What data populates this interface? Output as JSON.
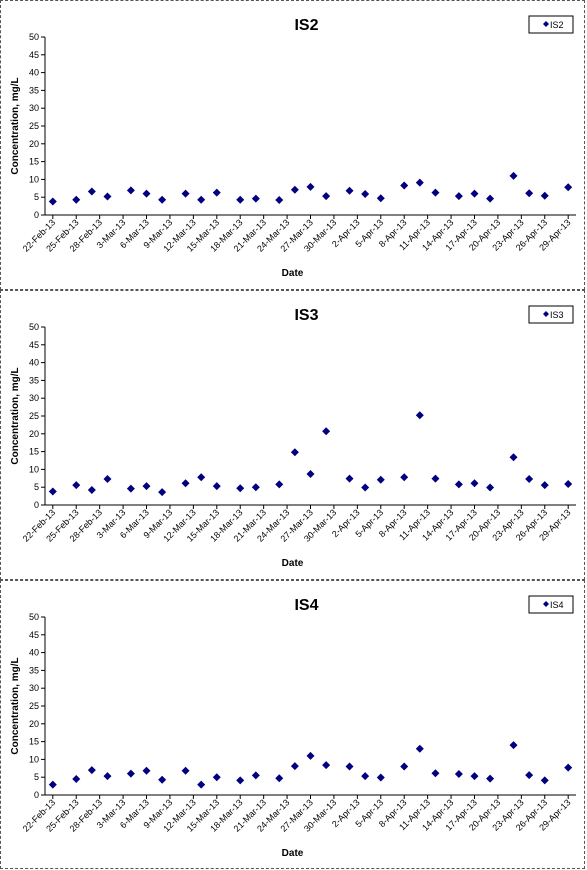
{
  "colors": {
    "marker": "#000080",
    "axis": "#000000",
    "panel_border": "#555555"
  },
  "chart_data": [
    {
      "type": "scatter",
      "title": "IS2",
      "xlabel": "Date",
      "ylabel": "Concentration, mg/L",
      "ylim": [
        0,
        50
      ],
      "yticks": [
        0,
        5,
        10,
        15,
        20,
        25,
        30,
        35,
        40,
        45,
        50
      ],
      "xlim": [
        "2013-02-21",
        "2013-04-30"
      ],
      "xtick_labels": [
        "22-Feb-13",
        "25-Feb-13",
        "28-Feb-13",
        "3-Mar-13",
        "6-Mar-13",
        "9-Mar-13",
        "12-Mar-13",
        "15-Mar-13",
        "18-Mar-13",
        "21-Mar-13",
        "24-Mar-13",
        "27-Mar-13",
        "30-Mar-13",
        "2-Apr-13",
        "5-Apr-13",
        "8-Apr-13",
        "11-Apr-13",
        "14-Apr-13",
        "17-Apr-13",
        "20-Apr-13",
        "23-Apr-13",
        "26-Apr-13",
        "29-Apr-13"
      ],
      "legend": {
        "position": "top-right",
        "entries": [
          "IS2"
        ]
      },
      "grid": false,
      "series": [
        {
          "name": "IS2",
          "points": [
            {
              "x": "2013-02-22",
              "y": 3.8
            },
            {
              "x": "2013-02-25",
              "y": 4.3
            },
            {
              "x": "2013-02-27",
              "y": 6.6
            },
            {
              "x": "2013-03-01",
              "y": 5.2
            },
            {
              "x": "2013-03-04",
              "y": 6.9
            },
            {
              "x": "2013-03-06",
              "y": 6.0
            },
            {
              "x": "2013-03-08",
              "y": 4.3
            },
            {
              "x": "2013-03-11",
              "y": 6.0
            },
            {
              "x": "2013-03-13",
              "y": 4.3
            },
            {
              "x": "2013-03-15",
              "y": 6.3
            },
            {
              "x": "2013-03-18",
              "y": 4.3
            },
            {
              "x": "2013-03-20",
              "y": 4.6
            },
            {
              "x": "2013-03-23",
              "y": 4.2
            },
            {
              "x": "2013-03-25",
              "y": 7.1
            },
            {
              "x": "2013-03-27",
              "y": 7.9
            },
            {
              "x": "2013-03-29",
              "y": 5.3
            },
            {
              "x": "2013-04-01",
              "y": 6.8
            },
            {
              "x": "2013-04-03",
              "y": 5.9
            },
            {
              "x": "2013-04-05",
              "y": 4.7
            },
            {
              "x": "2013-04-08",
              "y": 8.3
            },
            {
              "x": "2013-04-10",
              "y": 9.1
            },
            {
              "x": "2013-04-12",
              "y": 6.3
            },
            {
              "x": "2013-04-15",
              "y": 5.3
            },
            {
              "x": "2013-04-17",
              "y": 6.0
            },
            {
              "x": "2013-04-19",
              "y": 4.6
            },
            {
              "x": "2013-04-22",
              "y": 11.0
            },
            {
              "x": "2013-04-24",
              "y": 6.1
            },
            {
              "x": "2013-04-26",
              "y": 5.4
            },
            {
              "x": "2013-04-29",
              "y": 7.8
            }
          ]
        }
      ]
    },
    {
      "type": "scatter",
      "title": "IS3",
      "xlabel": "Date",
      "ylabel": "Concentration, mg/L",
      "ylim": [
        0,
        50
      ],
      "yticks": [
        0,
        5,
        10,
        15,
        20,
        25,
        30,
        35,
        40,
        45,
        50
      ],
      "xlim": [
        "2013-02-21",
        "2013-04-30"
      ],
      "xtick_labels": [
        "22-Feb-13",
        "25-Feb-13",
        "28-Feb-13",
        "3-Mar-13",
        "6-Mar-13",
        "9-Mar-13",
        "12-Mar-13",
        "15-Mar-13",
        "18-Mar-13",
        "21-Mar-13",
        "24-Mar-13",
        "27-Mar-13",
        "30-Mar-13",
        "2-Apr-13",
        "5-Apr-13",
        "8-Apr-13",
        "11-Apr-13",
        "14-Apr-13",
        "17-Apr-13",
        "20-Apr-13",
        "23-Apr-13",
        "26-Apr-13",
        "29-Apr-13"
      ],
      "legend": {
        "position": "top-right",
        "entries": [
          "IS3"
        ]
      },
      "grid": false,
      "series": [
        {
          "name": "IS3",
          "points": [
            {
              "x": "2013-02-22",
              "y": 3.8
            },
            {
              "x": "2013-02-25",
              "y": 5.6
            },
            {
              "x": "2013-02-27",
              "y": 4.2
            },
            {
              "x": "2013-03-01",
              "y": 7.3
            },
            {
              "x": "2013-03-04",
              "y": 4.6
            },
            {
              "x": "2013-03-06",
              "y": 5.3
            },
            {
              "x": "2013-03-08",
              "y": 3.6
            },
            {
              "x": "2013-03-11",
              "y": 6.1
            },
            {
              "x": "2013-03-13",
              "y": 7.8
            },
            {
              "x": "2013-03-15",
              "y": 5.3
            },
            {
              "x": "2013-03-18",
              "y": 4.7
            },
            {
              "x": "2013-03-20",
              "y": 5.0
            },
            {
              "x": "2013-03-23",
              "y": 5.8
            },
            {
              "x": "2013-03-25",
              "y": 14.8
            },
            {
              "x": "2013-03-27",
              "y": 8.7
            },
            {
              "x": "2013-03-29",
              "y": 20.7
            },
            {
              "x": "2013-04-01",
              "y": 7.4
            },
            {
              "x": "2013-04-03",
              "y": 4.9
            },
            {
              "x": "2013-04-05",
              "y": 7.1
            },
            {
              "x": "2013-04-08",
              "y": 7.8
            },
            {
              "x": "2013-04-10",
              "y": 25.2
            },
            {
              "x": "2013-04-12",
              "y": 7.4
            },
            {
              "x": "2013-04-15",
              "y": 5.8
            },
            {
              "x": "2013-04-17",
              "y": 6.1
            },
            {
              "x": "2013-04-19",
              "y": 4.9
            },
            {
              "x": "2013-04-22",
              "y": 13.4
            },
            {
              "x": "2013-04-24",
              "y": 7.3
            },
            {
              "x": "2013-04-26",
              "y": 5.6
            },
            {
              "x": "2013-04-29",
              "y": 5.9
            }
          ]
        }
      ]
    },
    {
      "type": "scatter",
      "title": "IS4",
      "xlabel": "Date",
      "ylabel": "Concentration, mg/L",
      "ylim": [
        0,
        50
      ],
      "yticks": [
        0,
        5,
        10,
        15,
        20,
        25,
        30,
        35,
        40,
        45,
        50
      ],
      "xlim": [
        "2013-02-21",
        "2013-04-30"
      ],
      "xtick_labels": [
        "22-Feb-13",
        "25-Feb-13",
        "28-Feb-13",
        "3-Mar-13",
        "6-Mar-13",
        "9-Mar-13",
        "12-Mar-13",
        "15-Mar-13",
        "18-Mar-13",
        "21-Mar-13",
        "24-Mar-13",
        "27-Mar-13",
        "30-Mar-13",
        "2-Apr-13",
        "5-Apr-13",
        "8-Apr-13",
        "11-Apr-13",
        "14-Apr-13",
        "17-Apr-13",
        "20-Apr-13",
        "23-Apr-13",
        "26-Apr-13",
        "29-Apr-13"
      ],
      "legend": {
        "position": "top-right",
        "entries": [
          "IS4"
        ]
      },
      "grid": false,
      "series": [
        {
          "name": "IS4",
          "points": [
            {
              "x": "2013-02-22",
              "y": 2.9
            },
            {
              "x": "2013-02-25",
              "y": 4.5
            },
            {
              "x": "2013-02-27",
              "y": 7.0
            },
            {
              "x": "2013-03-01",
              "y": 5.3
            },
            {
              "x": "2013-03-04",
              "y": 6.0
            },
            {
              "x": "2013-03-06",
              "y": 6.8
            },
            {
              "x": "2013-03-08",
              "y": 4.3
            },
            {
              "x": "2013-03-11",
              "y": 6.8
            },
            {
              "x": "2013-03-13",
              "y": 2.9
            },
            {
              "x": "2013-03-15",
              "y": 5.0
            },
            {
              "x": "2013-03-18",
              "y": 4.1
            },
            {
              "x": "2013-03-20",
              "y": 5.5
            },
            {
              "x": "2013-03-23",
              "y": 4.7
            },
            {
              "x": "2013-03-25",
              "y": 8.1
            },
            {
              "x": "2013-03-27",
              "y": 11.0
            },
            {
              "x": "2013-03-29",
              "y": 8.4
            },
            {
              "x": "2013-04-01",
              "y": 8.0
            },
            {
              "x": "2013-04-03",
              "y": 5.3
            },
            {
              "x": "2013-04-05",
              "y": 4.9
            },
            {
              "x": "2013-04-08",
              "y": 8.0
            },
            {
              "x": "2013-04-10",
              "y": 13.0
            },
            {
              "x": "2013-04-12",
              "y": 6.1
            },
            {
              "x": "2013-04-15",
              "y": 5.9
            },
            {
              "x": "2013-04-17",
              "y": 5.3
            },
            {
              "x": "2013-04-19",
              "y": 4.6
            },
            {
              "x": "2013-04-22",
              "y": 14.0
            },
            {
              "x": "2013-04-24",
              "y": 5.6
            },
            {
              "x": "2013-04-26",
              "y": 4.1
            },
            {
              "x": "2013-04-29",
              "y": 7.7
            }
          ]
        }
      ]
    }
  ]
}
